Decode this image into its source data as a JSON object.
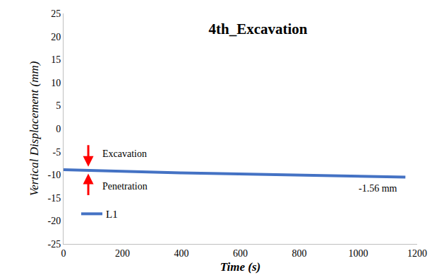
{
  "chart_data": {
    "type": "line",
    "title": "4th_Excavation",
    "x_label": "Time (s)",
    "y_label": "Vertical Displacement (mm)",
    "x": [
      0,
      50,
      100,
      200,
      300,
      400,
      500,
      600,
      700,
      800,
      900,
      1000,
      1100,
      1160
    ],
    "series": [
      {
        "name": "L1",
        "color": "#4472c4",
        "line_style": "solid",
        "values": [
          -8.9,
          -9.0,
          -9.1,
          -9.3,
          -9.45,
          -9.6,
          -9.7,
          -9.8,
          -9.9,
          -10.0,
          -10.15,
          -10.3,
          -10.45,
          -10.5
        ]
      }
    ],
    "annotations": [
      "Excavation",
      "Penetration",
      "-1.56 mm"
    ],
    "xlim": [
      0,
      1200
    ],
    "xticks": [
      0,
      200,
      400,
      600,
      800,
      1000,
      1200
    ],
    "ylim": [
      -25,
      25
    ],
    "yticks": [
      -25,
      -20,
      -15,
      -10,
      -5,
      0,
      5,
      10,
      15,
      20,
      25
    ],
    "grid": false,
    "legend": "lower left"
  }
}
